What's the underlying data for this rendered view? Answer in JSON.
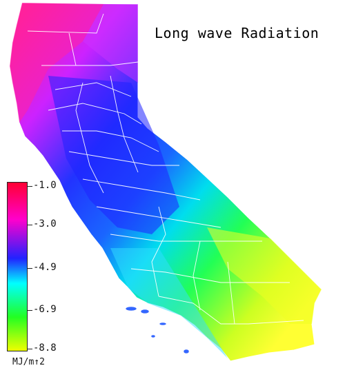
{
  "title": "Long wave Radiation",
  "legend": {
    "units": "MJ/m↑2",
    "ticks": [
      "-1.0",
      "-3.0",
      "-4.9",
      "-6.9",
      "-8.8"
    ],
    "colors": [
      "#ff0033",
      "#ff00cc",
      "#2222ff",
      "#00ffff",
      "#22ff22",
      "#eeff00"
    ]
  },
  "map": {
    "region": "California",
    "color_scale_note": "magenta in the northwest, blue in central valley, cyan-green-yellow toward the southeast deserts"
  }
}
